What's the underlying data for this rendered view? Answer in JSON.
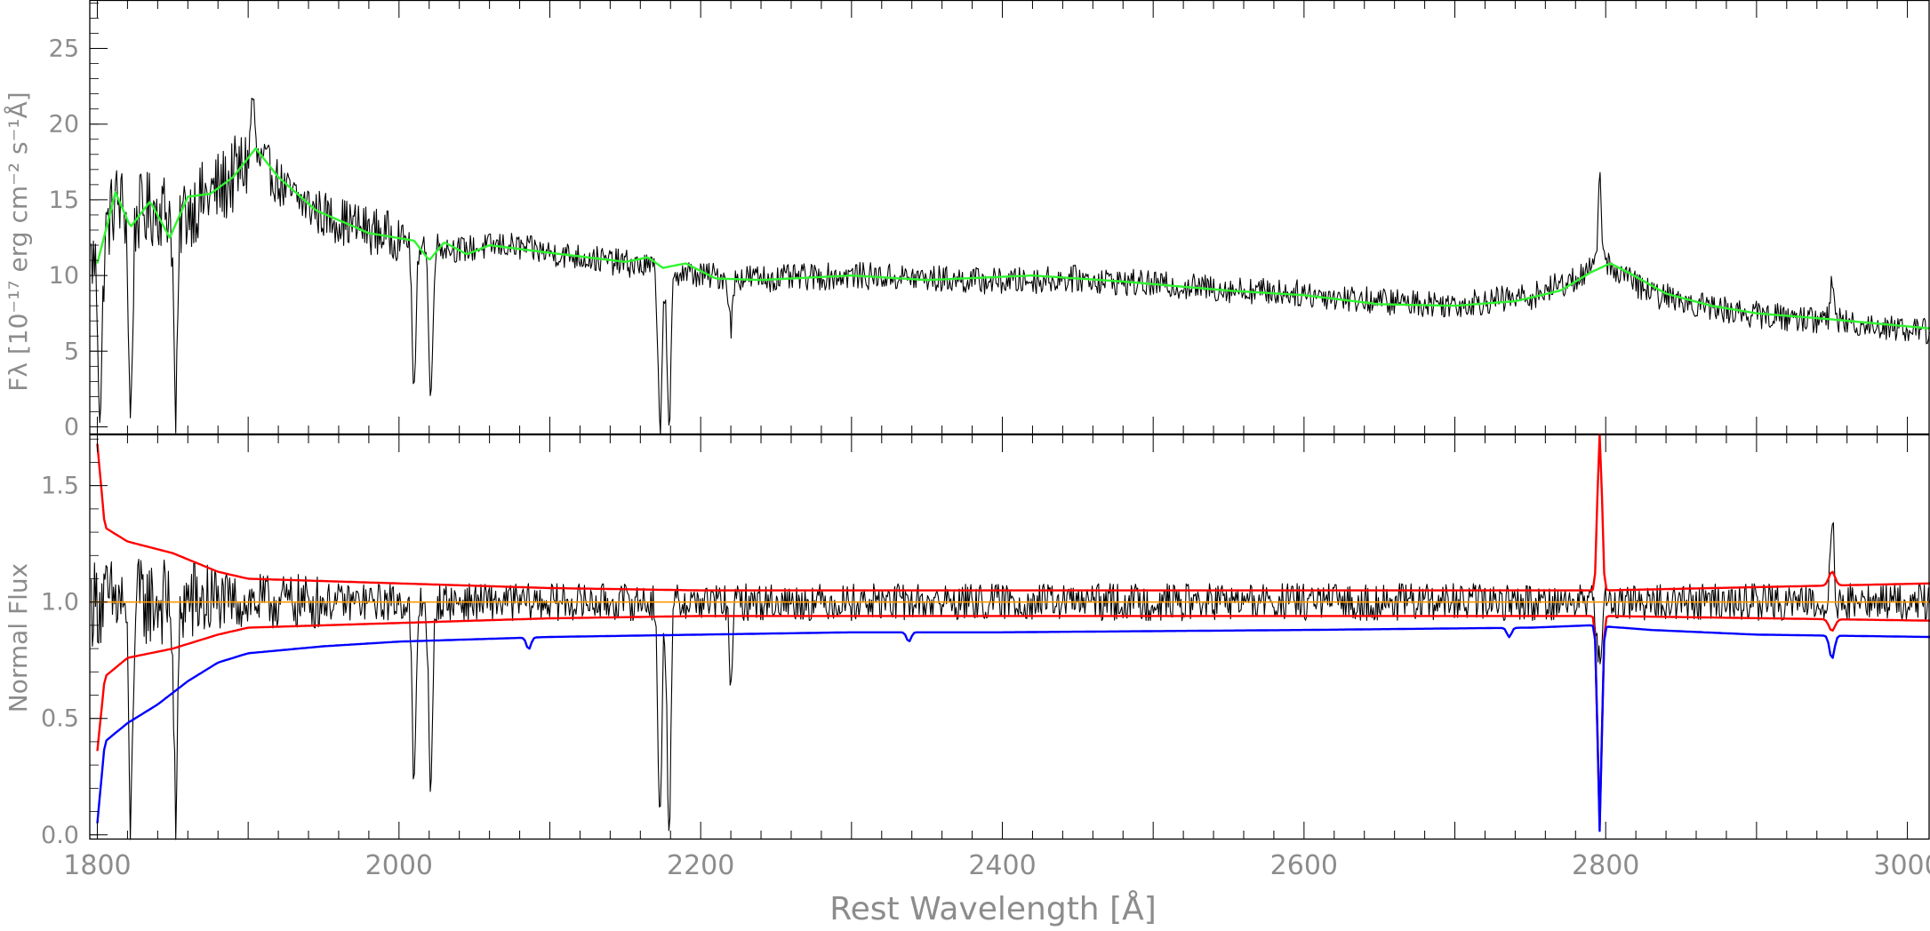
{
  "chart_data": [
    {
      "type": "line",
      "panel": "top",
      "ylabel": "Fλ [10⁻¹⁷ erg cm⁻² s⁻¹Å]",
      "ylim": [
        -0.5,
        28.2
      ],
      "xlim": [
        1795,
        3015
      ],
      "yticks": [
        0,
        5,
        10,
        15,
        20,
        25
      ],
      "ytick_labels": [
        "0",
        "5",
        "10",
        "15",
        "20",
        "25"
      ],
      "grid": false,
      "series": [
        {
          "color": "#000000",
          "style": "noisy spectrum",
          "x": [
            1800,
            1812,
            1825,
            1840,
            1855,
            1870,
            1885,
            1900,
            1910,
            1925,
            1950,
            1980,
            2010,
            2040,
            2070,
            2100,
            2150,
            2200,
            2250,
            2300,
            2350,
            2400,
            2450,
            2500,
            2550,
            2600,
            2650,
            2700,
            2750,
            2780,
            2800,
            2830,
            2870,
            2900,
            2950,
            3015
          ],
          "values": [
            11,
            15,
            14,
            14.5,
            14,
            15,
            16,
            17.5,
            17.5,
            15.5,
            14,
            13,
            12.3,
            11.7,
            12,
            11.5,
            10.8,
            10,
            9.8,
            10,
            9.8,
            9.6,
            9.8,
            9.4,
            9.1,
            8.8,
            8.3,
            8.1,
            8.6,
            9.8,
            10.8,
            8.8,
            7.9,
            7.4,
            7.0,
            6.3
          ],
          "noise": 1.0
        },
        {
          "color": "#2ef52e",
          "style": "continuum fit",
          "x": [
            1800,
            1812,
            1822,
            1835,
            1848,
            1860,
            1875,
            1890,
            1905,
            1920,
            1945,
            1980,
            2010,
            2020,
            2030,
            2045,
            2060,
            2100,
            2150,
            2165,
            2175,
            2190,
            2210,
            2240,
            2300,
            2350,
            2420,
            2480,
            2550,
            2600,
            2650,
            2700,
            2740,
            2770,
            2790,
            2803,
            2815,
            2840,
            2870,
            2900,
            2950,
            3015
          ],
          "values": [
            10.8,
            15.5,
            13.2,
            14.9,
            12.5,
            15.2,
            15.4,
            16.5,
            18.4,
            16.5,
            14.3,
            12.8,
            12.3,
            11.0,
            12.2,
            11.4,
            12.0,
            11.5,
            10.9,
            11.2,
            10.5,
            10.8,
            9.8,
            9.7,
            10.0,
            9.7,
            10.0,
            9.6,
            9.0,
            8.7,
            8.1,
            8.0,
            8.3,
            9.0,
            10.2,
            10.8,
            10.2,
            8.8,
            8.0,
            7.5,
            7.1,
            6.5
          ]
        }
      ],
      "absorption_features": [
        {
          "x": 1802,
          "depth": 10.5
        },
        {
          "x": 1822,
          "depth": 13.8
        },
        {
          "x": 1852,
          "depth": 13.4
        },
        {
          "x": 2010,
          "depth": 10.3
        },
        {
          "x": 2021,
          "depth": 10.5
        },
        {
          "x": 2173,
          "depth": 10.5
        },
        {
          "x": 2179,
          "depth": 10.8
        },
        {
          "x": 2220,
          "depth": 3.2
        }
      ],
      "emission_features": [
        {
          "x": 1903,
          "height": 4.5
        },
        {
          "x": 2796,
          "height": 6.2
        },
        {
          "x": 2950,
          "height": 2.8
        }
      ]
    },
    {
      "type": "line",
      "panel": "bottom",
      "xlabel": "Rest Wavelength [Å]",
      "ylabel": "Normal Flux",
      "ylim": [
        -0.02,
        1.72
      ],
      "xlim": [
        1795,
        3015
      ],
      "yticks": [
        0,
        0.5,
        1,
        1.5
      ],
      "ytick_labels": [
        "0.0",
        "0.5",
        "1.0",
        "1.5"
      ],
      "xticks": [
        1800,
        2000,
        2200,
        2400,
        2600,
        2800,
        3000
      ],
      "xtick_labels": [
        "1800",
        "2000",
        "2200",
        "2400",
        "2600",
        "2800",
        "3000"
      ],
      "grid": false,
      "series": [
        {
          "color": "#000000",
          "style": "normalized spectrum",
          "x": [
            1800,
            3015
          ],
          "values": [
            1.0,
            1.0
          ],
          "noise": 0.08
        },
        {
          "color": "#ff0000",
          "style": "upper error",
          "x": [
            1800,
            1805,
            1820,
            1850,
            1880,
            1900,
            1950,
            2000,
            2100,
            2200,
            2300,
            2400,
            2600,
            2800,
            3015
          ],
          "values": [
            1.68,
            1.32,
            1.26,
            1.21,
            1.13,
            1.1,
            1.09,
            1.08,
            1.06,
            1.05,
            1.05,
            1.05,
            1.05,
            1.05,
            1.08
          ]
        },
        {
          "color": "#ff0000",
          "style": "lower error",
          "x": [
            1800,
            1805,
            1820,
            1850,
            1880,
            1900,
            1950,
            2000,
            2100,
            2200,
            2300,
            2400,
            2600,
            2800,
            3015
          ],
          "values": [
            0.36,
            0.68,
            0.76,
            0.8,
            0.86,
            0.89,
            0.9,
            0.91,
            0.93,
            0.94,
            0.94,
            0.94,
            0.94,
            0.94,
            0.92
          ]
        },
        {
          "color": "#0000ff",
          "style": "lower envelope",
          "x": [
            1800,
            1805,
            1820,
            1840,
            1860,
            1880,
            1900,
            1950,
            2000,
            2050,
            2100,
            2200,
            2300,
            2400,
            2600,
            2750,
            2790,
            2830,
            2900,
            3015
          ],
          "values": [
            0.05,
            0.4,
            0.48,
            0.56,
            0.66,
            0.74,
            0.78,
            0.81,
            0.83,
            0.84,
            0.85,
            0.86,
            0.87,
            0.87,
            0.88,
            0.89,
            0.9,
            0.88,
            0.86,
            0.85
          ]
        },
        {
          "color": "#ff9900",
          "style": "unity line",
          "x": [
            1795,
            3015
          ],
          "values": [
            1.0,
            1.0
          ]
        }
      ],
      "absorption_features": [
        {
          "x": 1822,
          "depth": 1.0
        },
        {
          "x": 1852,
          "depth": 0.95
        },
        {
          "x": 2010,
          "depth": 0.8
        },
        {
          "x": 2021,
          "depth": 0.85
        },
        {
          "x": 2173,
          "depth": 0.95
        },
        {
          "x": 2179,
          "depth": 0.95
        },
        {
          "x": 2220,
          "depth": 0.3
        },
        {
          "x": 2796,
          "depth": 0.95
        }
      ],
      "emission_features": [
        {
          "x": 2796,
          "height": 0.7
        },
        {
          "x": 2950,
          "height": 0.38
        }
      ]
    }
  ]
}
